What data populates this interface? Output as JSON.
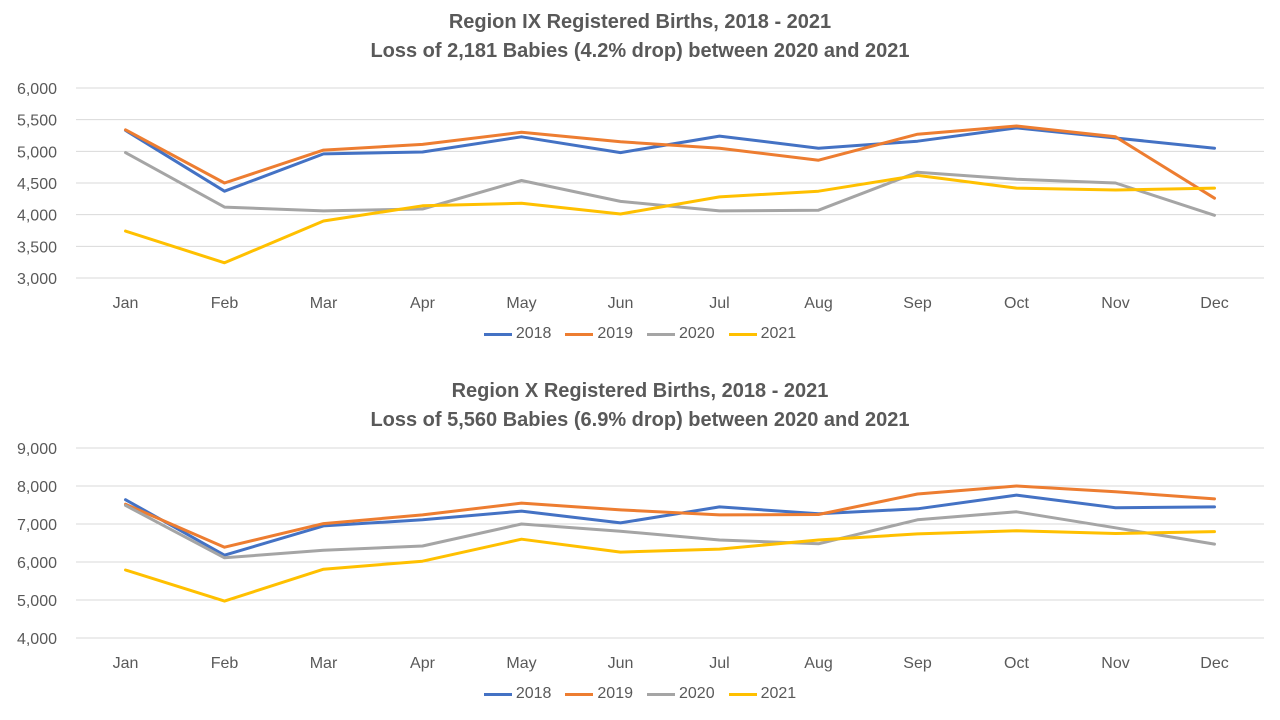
{
  "chart_data": [
    {
      "type": "line",
      "title": "Region IX Registered Births, 2018 - 2021",
      "subtitle": "Loss of 2,181 Babies (4.2% drop) between 2020 and 2021",
      "categories": [
        "Jan",
        "Feb",
        "Mar",
        "Apr",
        "May",
        "Jun",
        "Jul",
        "Aug",
        "Sep",
        "Oct",
        "Nov",
        "Dec"
      ],
      "ylim": [
        3000,
        6000
      ],
      "yticks": [
        3000,
        3500,
        4000,
        4500,
        5000,
        5500,
        6000
      ],
      "ytick_labels": [
        "3,000",
        "3,500",
        "4,000",
        "4,500",
        "5,000",
        "5,500",
        "6,000"
      ],
      "grid": true,
      "legend": "bottom",
      "series": [
        {
          "name": "2018",
          "color": "#4472C4",
          "values": [
            5330,
            4370,
            4960,
            4990,
            5230,
            4980,
            5240,
            5050,
            5160,
            5370,
            5210,
            5050
          ]
        },
        {
          "name": "2019",
          "color": "#ED7D31",
          "values": [
            5340,
            4500,
            5020,
            5110,
            5300,
            5150,
            5050,
            4860,
            5270,
            5400,
            5230,
            4260
          ]
        },
        {
          "name": "2020",
          "color": "#A5A5A5",
          "values": [
            4980,
            4120,
            4060,
            4090,
            4540,
            4210,
            4060,
            4070,
            4670,
            4560,
            4500,
            3990
          ]
        },
        {
          "name": "2021",
          "color": "#FFC000",
          "values": [
            3740,
            3240,
            3900,
            4140,
            4180,
            4010,
            4280,
            4370,
            4620,
            4420,
            4390,
            4420
          ]
        }
      ]
    },
    {
      "type": "line",
      "title": "Region X Registered Births, 2018 - 2021",
      "subtitle": "Loss of 5,560 Babies (6.9% drop) between 2020 and 2021",
      "categories": [
        "Jan",
        "Feb",
        "Mar",
        "Apr",
        "May",
        "Jun",
        "Jul",
        "Aug",
        "Sep",
        "Oct",
        "Nov",
        "Dec"
      ],
      "ylim": [
        4000,
        9000
      ],
      "yticks": [
        4000,
        5000,
        6000,
        7000,
        8000,
        9000
      ],
      "ytick_labels": [
        "4,000",
        "5,000",
        "6,000",
        "7,000",
        "8,000",
        "9,000"
      ],
      "grid": true,
      "legend": "bottom",
      "series": [
        {
          "name": "2018",
          "color": "#4472C4",
          "values": [
            7640,
            6180,
            6950,
            7110,
            7340,
            7030,
            7450,
            7270,
            7400,
            7760,
            7430,
            7450
          ]
        },
        {
          "name": "2019",
          "color": "#ED7D31",
          "values": [
            7520,
            6390,
            7010,
            7240,
            7550,
            7370,
            7240,
            7250,
            7790,
            8000,
            7850,
            7660
          ]
        },
        {
          "name": "2020",
          "color": "#A5A5A5",
          "values": [
            7490,
            6110,
            6310,
            6420,
            7000,
            6810,
            6580,
            6480,
            7110,
            7320,
            6900,
            6470
          ]
        },
        {
          "name": "2021",
          "color": "#FFC000",
          "values": [
            5790,
            4970,
            5810,
            6020,
            6600,
            6260,
            6340,
            6580,
            6740,
            6820,
            6750,
            6800
          ]
        }
      ]
    }
  ]
}
